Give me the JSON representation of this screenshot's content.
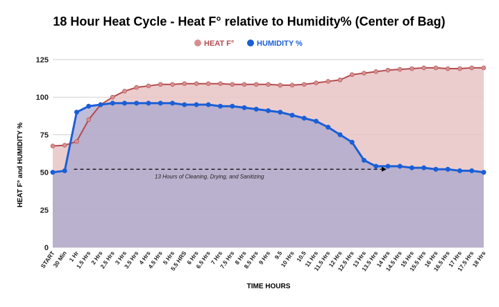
{
  "chart_data": {
    "type": "area",
    "title": "18 Hour Heat Cycle - Heat F° relative to Humidity% (Center of Bag)",
    "xlabel": "TIME HOURS",
    "ylabel": "HEAT F° and HUMIDITY %",
    "ylim": [
      0,
      125
    ],
    "yticks": [
      0,
      25,
      50,
      75,
      100,
      125
    ],
    "grid": true,
    "legend": "top-center",
    "categories": [
      "START",
      "30 Min",
      "1 Hr",
      "1.5 Hrs",
      "2 Hrs",
      "2.5 Hrs",
      "3 Hrs",
      "3.5 Hrs",
      "4 Hrs",
      "4.5 Hrs",
      "5 Hrs",
      "5.5 HRS",
      "6 Hrs",
      "6.5 Hrs",
      "7 Hrs",
      "7.5 Hrs",
      "8 Hrs",
      "8.5 Hrs",
      "9 Hrs",
      "9.5",
      "10 Hrs",
      "10.5",
      "11 Hrs",
      "11.5 Hrs",
      "12 Hrs",
      "12.5 Hrs",
      "13 Hrs",
      "13.5 Hrs",
      "14 Hrs",
      "14.5 Hrs",
      "15 Hrs",
      "15.5 Hrs",
      "16 Hrs",
      "16.5 Hrs",
      "17 Hrs",
      "17.5 Hrs",
      "18 Hrs"
    ],
    "series": [
      {
        "name": "HEAT F°",
        "line_color": "#b34a4d",
        "marker_color": "#d68f8f",
        "fill_color": "#e8c4c6",
        "values": [
          67.5,
          68,
          70.5,
          85,
          95,
          100,
          104,
          106.5,
          107.5,
          108.5,
          108.5,
          109,
          109,
          109,
          109,
          108.5,
          108.5,
          108.5,
          108.5,
          108,
          108,
          108.5,
          109.5,
          110.5,
          111.5,
          115,
          116,
          117,
          118,
          118.5,
          119,
          119.5,
          119.5,
          119,
          119,
          119.5,
          119.5
        ]
      },
      {
        "name": "HUMIDITY %",
        "line_color": "#1a5fd6",
        "marker_color": "#1a5fd6",
        "fill_color": "#a9a7cd",
        "values": [
          50,
          51,
          90,
          94,
          95,
          96,
          96,
          96,
          96,
          96,
          96,
          95,
          95,
          95,
          94,
          94,
          93,
          92,
          91,
          90,
          88,
          86,
          84,
          80,
          75,
          70,
          58,
          54,
          54,
          54,
          53,
          53,
          52,
          52,
          51,
          51,
          50
        ]
      }
    ],
    "annotation": {
      "text": "13 Hours of Cleaning, Drying, and Sanitizing",
      "y": 52,
      "from_category": 2,
      "to_category": 28
    }
  }
}
